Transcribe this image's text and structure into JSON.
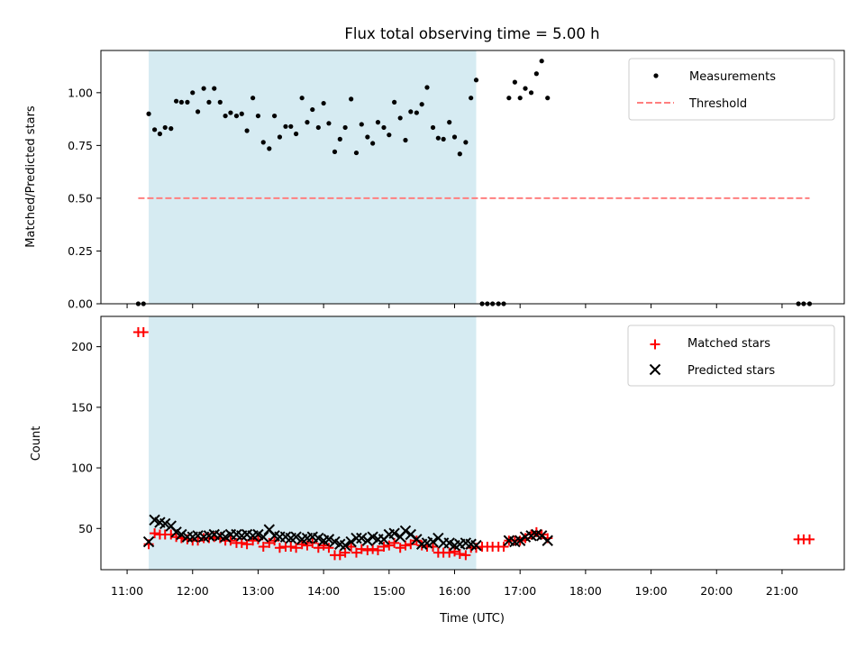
{
  "chart_data": {
    "type": "scatter",
    "title": "Flux total observing time = 5.00 h",
    "xlabel": "Time (UTC)",
    "x_unit": "hour_utc",
    "xlim": [
      10.6,
      21.95
    ],
    "x_tick_labels": [
      "11:00",
      "12:00",
      "13:00",
      "14:00",
      "15:00",
      "16:00",
      "17:00",
      "18:00",
      "19:00",
      "20:00",
      "21:00"
    ],
    "shaded_interval": {
      "x": [
        11.33,
        16.33
      ],
      "color": "#add8e6"
    },
    "panels": [
      {
        "id": "ratio",
        "ylabel": "Matched/Predicted stars",
        "ylim": [
          0,
          1.2
        ],
        "y_tick_labels": [
          "0.00",
          "0.25",
          "0.50",
          "0.75",
          "1.00"
        ],
        "series": [
          {
            "name": "Measurements",
            "type": "scatter",
            "color": "#000000",
            "x": [
              11.17,
              11.25,
              11.33,
              11.42,
              11.5,
              11.58,
              11.67,
              11.75,
              11.83,
              11.92,
              12.0,
              12.08,
              12.17,
              12.25,
              12.33,
              12.42,
              12.5,
              12.58,
              12.67,
              12.75,
              12.83,
              12.92,
              13.0,
              13.08,
              13.17,
              13.25,
              13.33,
              13.42,
              13.5,
              13.58,
              13.67,
              13.75,
              13.83,
              13.92,
              14.0,
              14.08,
              14.17,
              14.25,
              14.33,
              14.42,
              14.5,
              14.58,
              14.67,
              14.75,
              14.83,
              14.92,
              15.0,
              15.08,
              15.17,
              15.25,
              15.33,
              15.42,
              15.5,
              15.58,
              15.67,
              15.75,
              15.83,
              15.92,
              16.0,
              16.08,
              16.17,
              16.25,
              16.33,
              16.42,
              16.5,
              16.58,
              16.67,
              16.75,
              16.83,
              16.92,
              17.0,
              17.08,
              17.17,
              17.25,
              17.33,
              17.42,
              21.25,
              21.33,
              21.42
            ],
            "y": [
              0,
              0,
              0.9,
              0.825,
              0.805,
              0.835,
              0.83,
              0.96,
              0.955,
              0.955,
              1.0,
              0.91,
              1.02,
              0.955,
              1.02,
              0.955,
              0.89,
              0.905,
              0.89,
              0.9,
              0.82,
              0.975,
              0.89,
              0.765,
              0.735,
              0.89,
              0.79,
              0.84,
              0.84,
              0.805,
              0.975,
              0.86,
              0.92,
              0.835,
              0.95,
              0.855,
              0.72,
              0.78,
              0.835,
              0.97,
              0.715,
              0.85,
              0.79,
              0.76,
              0.86,
              0.835,
              0.8,
              0.955,
              0.88,
              0.775,
              0.91,
              0.905,
              0.945,
              1.025,
              0.835,
              0.785,
              0.78,
              0.86,
              0.79,
              0.71,
              0.765,
              0.975,
              1.06,
              0,
              0,
              0,
              0,
              0,
              0.975,
              1.05,
              0.975,
              1.02,
              1.0,
              1.09,
              1.15,
              0.975,
              0,
              0,
              0
            ]
          },
          {
            "name": "Threshold",
            "type": "line",
            "style": "dashed",
            "color": "#ff7f7f",
            "x": [
              11.17,
              21.42
            ],
            "y": [
              0.5,
              0.5
            ]
          }
        ],
        "legend": {
          "placement": "upper right",
          "entries": [
            "Measurements",
            "Threshold"
          ]
        }
      },
      {
        "id": "counts",
        "ylabel": "Count",
        "ylim": [
          16,
          225
        ],
        "y_tick_labels": [
          "50",
          "100",
          "150",
          "200"
        ],
        "series": [
          {
            "name": "Matched stars",
            "type": "scatter",
            "marker": "plus",
            "color": "#ff0000",
            "x": [
              11.17,
              11.25,
              11.33,
              11.42,
              11.5,
              11.58,
              11.67,
              11.75,
              11.83,
              11.92,
              12.0,
              12.08,
              12.17,
              12.25,
              12.33,
              12.42,
              12.5,
              12.58,
              12.67,
              12.75,
              12.83,
              12.92,
              13.0,
              13.08,
              13.17,
              13.25,
              13.33,
              13.42,
              13.5,
              13.58,
              13.67,
              13.75,
              13.83,
              13.92,
              14.0,
              14.08,
              14.17,
              14.25,
              14.33,
              14.42,
              14.5,
              14.58,
              14.67,
              14.75,
              14.83,
              14.92,
              15.0,
              15.08,
              15.17,
              15.25,
              15.33,
              15.42,
              15.5,
              15.58,
              15.67,
              15.75,
              15.83,
              15.92,
              16.0,
              16.08,
              16.17,
              16.25,
              16.33,
              16.42,
              16.5,
              16.58,
              16.67,
              16.75,
              16.83,
              16.92,
              17.0,
              17.08,
              17.17,
              17.25,
              17.33,
              17.42,
              21.25,
              21.33,
              21.42
            ],
            "y": [
              212,
              212,
              37,
              46,
              45,
              45,
              45,
              43,
              42,
              41,
              40,
              40,
              42,
              42,
              43,
              42,
              40,
              40,
              38,
              38,
              37,
              40,
              41,
              35,
              38,
              40,
              34,
              35,
              35,
              34,
              37,
              36,
              38,
              34,
              36,
              34,
              28,
              28,
              30,
              35,
              30,
              33,
              32,
              33,
              32,
              35,
              36,
              38,
              34,
              36,
              37,
              40,
              36,
              35,
              35,
              30,
              30,
              30,
              31,
              29,
              28,
              34,
              34,
              35,
              35,
              35,
              35,
              35,
              40,
              40,
              40,
              42,
              45,
              47,
              45,
              42,
              41,
              41,
              41
            ]
          },
          {
            "name": "Predicted stars",
            "type": "scatter",
            "marker": "x",
            "color": "#000000",
            "x": [
              11.33,
              11.42,
              11.5,
              11.58,
              11.67,
              11.75,
              11.83,
              11.92,
              12.0,
              12.08,
              12.17,
              12.25,
              12.33,
              12.42,
              12.5,
              12.58,
              12.67,
              12.75,
              12.83,
              12.92,
              13.0,
              13.08,
              13.17,
              13.25,
              13.33,
              13.42,
              13.5,
              13.58,
              13.67,
              13.75,
              13.83,
              13.92,
              14.0,
              14.08,
              14.17,
              14.25,
              14.33,
              14.42,
              14.5,
              14.58,
              14.67,
              14.75,
              14.83,
              14.92,
              15.0,
              15.08,
              15.17,
              15.25,
              15.33,
              15.42,
              15.5,
              15.58,
              15.67,
              15.75,
              15.83,
              15.92,
              16.0,
              16.08,
              16.17,
              16.25,
              16.33,
              16.83,
              16.92,
              17.0,
              17.08,
              17.17,
              17.25,
              17.33,
              17.42
            ],
            "y": [
              39,
              57,
              55,
              54,
              52,
              47,
              45,
              43,
              43,
              44,
              43,
              44,
              45,
              44,
              43,
              45,
              45,
              44,
              45,
              44,
              45,
              43,
              49,
              44,
              43,
              43,
              42,
              43,
              41,
              42,
              43,
              42,
              40,
              41,
              39,
              37,
              36,
              39,
              42,
              42,
              40,
              43,
              41,
              41,
              45,
              46,
              43,
              48,
              45,
              41,
              37,
              38,
              39,
              42,
              38,
              38,
              36,
              37,
              38,
              37,
              36,
              40,
              39,
              40,
              43,
              44,
              45,
              44,
              40
            ]
          }
        ],
        "legend": {
          "placement": "upper right",
          "entries": [
            "Matched stars",
            "Predicted stars"
          ]
        }
      }
    ]
  }
}
